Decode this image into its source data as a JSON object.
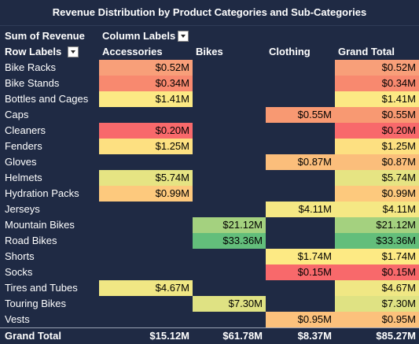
{
  "title": "Revenue Distribution by Product Categories and Sub-Categories",
  "pivot": {
    "value_field_label": "Sum of Revenue",
    "column_labels_label": "Column Labels",
    "row_labels_label": "Row Labels",
    "columns": [
      "Accessories",
      "Bikes",
      "Clothing",
      "Grand Total"
    ],
    "rows": [
      {
        "label": "Bike Racks",
        "values": [
          "$0.52M",
          "",
          "",
          "$0.52M"
        ]
      },
      {
        "label": "Bike Stands",
        "values": [
          "$0.34M",
          "",
          "",
          "$0.34M"
        ]
      },
      {
        "label": "Bottles and Cages",
        "values": [
          "$1.41M",
          "",
          "",
          "$1.41M"
        ]
      },
      {
        "label": "Caps",
        "values": [
          "",
          "",
          "$0.55M",
          "$0.55M"
        ]
      },
      {
        "label": "Cleaners",
        "values": [
          "$0.20M",
          "",
          "",
          "$0.20M"
        ]
      },
      {
        "label": "Fenders",
        "values": [
          "$1.25M",
          "",
          "",
          "$1.25M"
        ]
      },
      {
        "label": "Gloves",
        "values": [
          "",
          "",
          "$0.87M",
          "$0.87M"
        ]
      },
      {
        "label": "Helmets",
        "values": [
          "$5.74M",
          "",
          "",
          "$5.74M"
        ]
      },
      {
        "label": "Hydration Packs",
        "values": [
          "$0.99M",
          "",
          "",
          "$0.99M"
        ]
      },
      {
        "label": "Jerseys",
        "values": [
          "",
          "",
          "$4.11M",
          "$4.11M"
        ]
      },
      {
        "label": "Mountain Bikes",
        "values": [
          "",
          "$21.12M",
          "",
          "$21.12M"
        ]
      },
      {
        "label": "Road Bikes",
        "values": [
          "",
          "$33.36M",
          "",
          "$33.36M"
        ]
      },
      {
        "label": "Shorts",
        "values": [
          "",
          "",
          "$1.74M",
          "$1.74M"
        ]
      },
      {
        "label": "Socks",
        "values": [
          "",
          "",
          "$0.15M",
          "$0.15M"
        ]
      },
      {
        "label": "Tires and Tubes",
        "values": [
          "$4.67M",
          "",
          "",
          "$4.67M"
        ]
      },
      {
        "label": "Touring Bikes",
        "values": [
          "",
          "$7.30M",
          "",
          "$7.30M"
        ]
      },
      {
        "label": "Vests",
        "values": [
          "",
          "",
          "$0.95M",
          "$0.95M"
        ]
      }
    ],
    "colors": [
      [
        "#f89f79",
        "",
        "",
        "#f89f79"
      ],
      [
        "#f8896f",
        "",
        "",
        "#f8896f"
      ],
      [
        "#fce984",
        "",
        "",
        "#fce984"
      ],
      [
        "",
        "",
        "#f89972",
        "#f89972"
      ],
      [
        "#f8696b",
        "",
        "",
        "#f8696b"
      ],
      [
        "#fde081",
        "",
        "",
        "#fde081"
      ],
      [
        "",
        "",
        "#fbbe7b",
        "#fbbe7b"
      ],
      [
        "#e6e483",
        "",
        "",
        "#e6e483"
      ],
      [
        "#fdc97d",
        "",
        "",
        "#fdc97d"
      ],
      [
        "",
        "",
        "#f5e884",
        "#f5e884"
      ],
      [
        "",
        "#a4d17f",
        "",
        "#a4d17f"
      ],
      [
        "",
        "#63be7b",
        "",
        "#63be7b"
      ],
      [
        "",
        "",
        "#fdea84",
        "#fdea84"
      ],
      [
        "",
        "",
        "#f8696b",
        "#f8696b"
      ],
      [
        "#f0e784",
        "",
        "",
        "#f0e784"
      ],
      [
        "",
        "#dfe283",
        "",
        "#dfe283"
      ],
      [
        "",
        "",
        "#fcc17c",
        "#fcc17c"
      ]
    ],
    "total_label": "Grand Total",
    "totals": [
      "$15.12M",
      "$61.78M",
      "$8.37M",
      "$85.27M"
    ]
  }
}
